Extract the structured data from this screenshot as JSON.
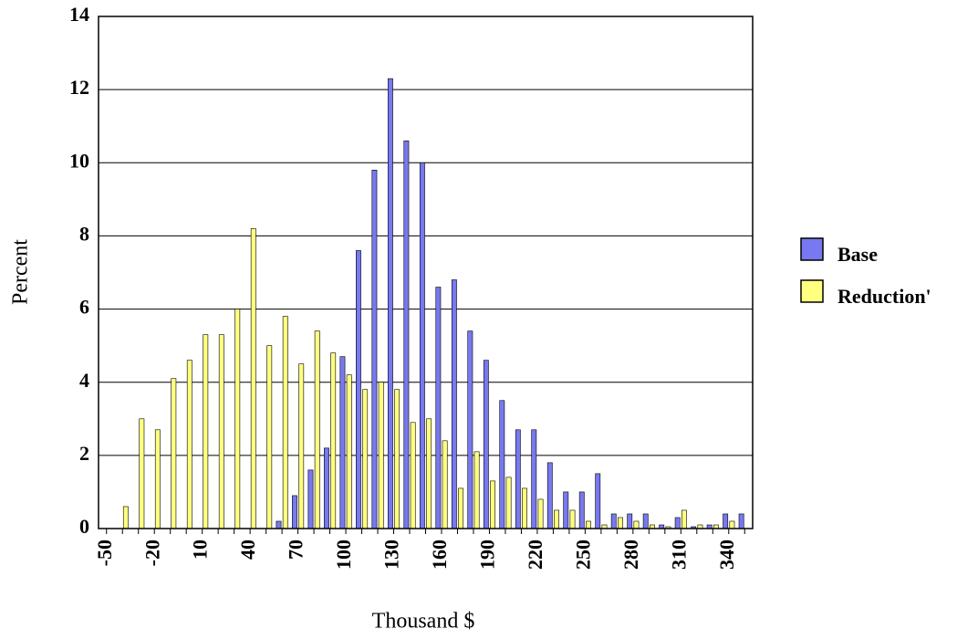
{
  "chart_data": {
    "type": "bar",
    "x_label": "Thousand $",
    "y_label": "Percent",
    "categories": [
      -50,
      null,
      null,
      -20,
      null,
      null,
      10,
      null,
      null,
      40,
      null,
      null,
      70,
      null,
      null,
      100,
      null,
      null,
      130,
      null,
      null,
      160,
      null,
      null,
      190,
      null,
      null,
      220,
      null,
      null,
      250,
      null,
      null,
      280,
      null,
      null,
      310,
      null,
      null,
      340,
      null
    ],
    "series": [
      {
        "name": "Base",
        "color": "#7878f0",
        "values": [
          0,
          0,
          0,
          0,
          0,
          0,
          0,
          0,
          0,
          0,
          0,
          0.2,
          0.9,
          1.6,
          2.2,
          4.7,
          7.6,
          9.8,
          12.3,
          10.6,
          10.0,
          6.6,
          6.8,
          5.4,
          4.6,
          3.5,
          2.7,
          2.7,
          1.8,
          1.0,
          1.0,
          1.5,
          0.4,
          0.4,
          0.4,
          0.1,
          0.3,
          0.05,
          0.1,
          0.4,
          0.4
        ]
      },
      {
        "name": "Reduction'",
        "color": "#ffff80",
        "values": [
          0,
          0.6,
          3.0,
          2.7,
          4.1,
          4.6,
          5.3,
          5.3,
          6.0,
          8.2,
          5.0,
          5.8,
          4.5,
          5.4,
          4.8,
          4.2,
          3.8,
          4.0,
          3.8,
          2.9,
          3.0,
          2.4,
          1.1,
          2.1,
          1.3,
          1.4,
          1.1,
          0.8,
          0.5,
          0.5,
          0.2,
          0.1,
          0.3,
          0.2,
          0.1,
          0.05,
          0.5,
          0.1,
          0.1,
          0.2,
          0
        ]
      }
    ],
    "ylim": [
      0,
      14
    ],
    "yticks": [
      0,
      2,
      4,
      6,
      8,
      10,
      12,
      14
    ],
    "grid": true,
    "legend": "right"
  }
}
